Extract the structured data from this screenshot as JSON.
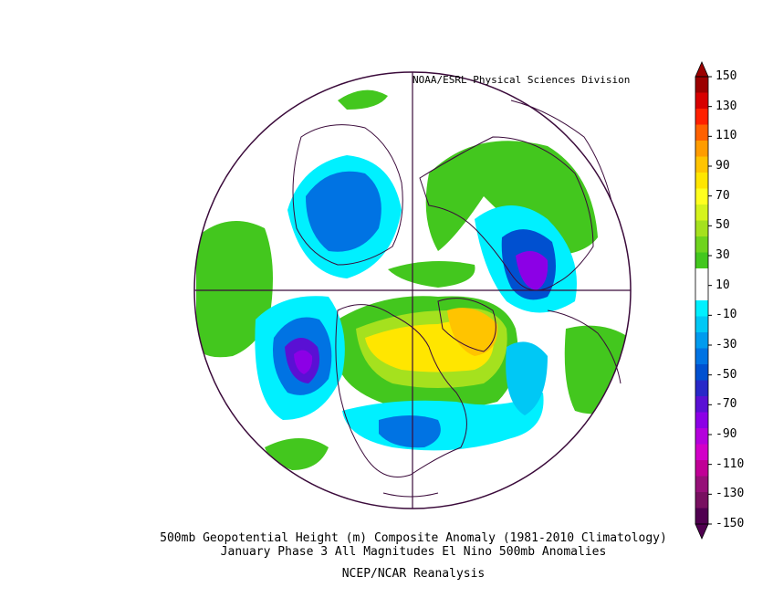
{
  "credit": "NOAA/ESRL Physical Sciences Division",
  "caption_line1": "500mb Geopotential Height (m) Composite Anomaly (1981-2010 Climatology)",
  "caption_line2": "January Phase 3 All Magnitudes El Nino 500mb Anomalies",
  "caption_line3": "NCEP/NCAR Reanalysis",
  "colorbar": {
    "labels": [
      "150",
      "130",
      "110",
      "90",
      "70",
      "50",
      "30",
      "10",
      "-10",
      "-30",
      "-50",
      "-70",
      "-90",
      "-110",
      "-130",
      "-150"
    ],
    "colors": [
      "#9b0000",
      "#d70000",
      "#ff2000",
      "#ff6100",
      "#ff9c00",
      "#ffc400",
      "#ffe600",
      "#ffff1e",
      "#d5f31c",
      "#a5e11e",
      "#6fd41e",
      "#43c71e",
      "#ffffff",
      "#ffffff",
      "#00f0ff",
      "#00c8f5",
      "#009bee",
      "#0073e3",
      "#0050d0",
      "#2828c8",
      "#5a10d4",
      "#8c00e6",
      "#b400dc",
      "#d200c8",
      "#c00096",
      "#961078",
      "#781060",
      "#500050"
    ]
  },
  "regions": [
    {
      "name": "north-pacific-blue",
      "color": "#00c8f5"
    },
    {
      "name": "aleutian-low",
      "color": "#5a10d4"
    },
    {
      "name": "canada-greenland-ridge",
      "color": "#ffe600"
    },
    {
      "name": "siberia-low",
      "color": "#8c00e6"
    },
    {
      "name": "europe-positive",
      "color": "#6fd41e"
    },
    {
      "name": "southeast-us-low",
      "color": "#0073e3"
    }
  ]
}
